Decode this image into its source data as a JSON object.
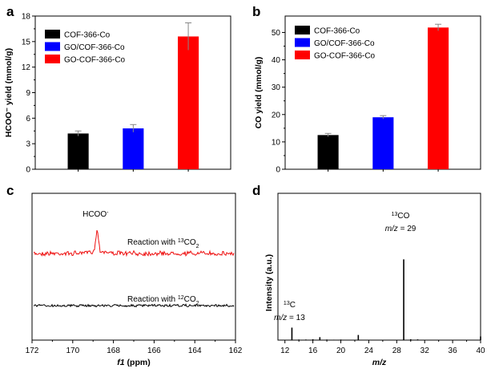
{
  "chart_data": [
    {
      "panel": "a",
      "type": "bar",
      "ylabel": "HCOO⁻ yield (mmol/g)",
      "xlabel": "",
      "ylim": [
        0,
        18
      ],
      "yticks": [
        0,
        3,
        6,
        9,
        12,
        15,
        18
      ],
      "categories": [
        "COF-366-Co",
        "GO/COF-366-Co",
        "GO-COF-366-Co"
      ],
      "values": [
        4.2,
        4.8,
        15.6
      ],
      "errors": [
        0.3,
        0.45,
        1.6
      ],
      "colors": [
        "#000000",
        "#0000ff",
        "#ff0000"
      ],
      "legend": [
        "COF-366-Co",
        "GO/COF-366-Co",
        "GO-COF-366-Co"
      ]
    },
    {
      "panel": "b",
      "type": "bar",
      "ylabel": "CO yield (mmol/g)",
      "xlabel": "",
      "ylim": [
        0,
        56
      ],
      "yticks": [
        0,
        10,
        20,
        30,
        40,
        50
      ],
      "categories": [
        "COF-366-Co",
        "GO/COF-366-Co",
        "GO-COF-366-Co"
      ],
      "values": [
        12.5,
        19.0,
        51.8
      ],
      "errors": [
        0.6,
        0.6,
        1.2
      ],
      "colors": [
        "#000000",
        "#0000ff",
        "#ff0000"
      ],
      "legend": [
        "COF-366-Co",
        "GO/COF-366-Co",
        "GO-COF-366-Co"
      ]
    },
    {
      "panel": "c",
      "type": "line",
      "xlabel": "f1 (ppm)",
      "xlabel_italic": "f1",
      "xlabel_rest": " (ppm)",
      "xlim": [
        172,
        162
      ],
      "xticks": [
        172,
        170,
        168,
        166,
        164,
        162
      ],
      "series": [
        {
          "name": "Reaction with 13CO2",
          "name_prefix": "Reaction with ",
          "isotope": "13",
          "molecule": "CO",
          "sub": "2",
          "color": "#ee1111",
          "peak_ppm": 168.8
        },
        {
          "name": "Reaction with 12CO2",
          "name_prefix": "Reaction with ",
          "isotope": "12",
          "molecule": "CO",
          "sub": "2",
          "color": "#000000",
          "peak_ppm": null
        }
      ],
      "annotations": [
        {
          "text": "HCOO",
          "sup": "-",
          "x": 168.8
        }
      ]
    },
    {
      "panel": "d",
      "type": "bar",
      "xlabel": "m/z",
      "ylabel": "Intensity (a.u.)",
      "xlim": [
        11,
        40
      ],
      "xticks": [
        12,
        16,
        20,
        24,
        28,
        32,
        36,
        40
      ],
      "x": [
        13,
        14,
        15,
        16,
        17,
        18,
        19,
        20,
        22.5,
        29,
        30,
        31,
        40
      ],
      "values": [
        0.085,
        0.004,
        0.004,
        0.006,
        0.02,
        0.004,
        0.003,
        0.004,
        0.035,
        0.55,
        0.006,
        0.005,
        0.025
      ],
      "annotations": [
        {
          "label_iso": "13",
          "label_mol": "CO",
          "mz_text": "m/z",
          "mz_value": " = 29",
          "x": 29
        },
        {
          "label_iso": "13",
          "label_mol": "C",
          "mz_text": "m/z",
          "mz_value": " = 13",
          "x": 13
        }
      ]
    }
  ]
}
